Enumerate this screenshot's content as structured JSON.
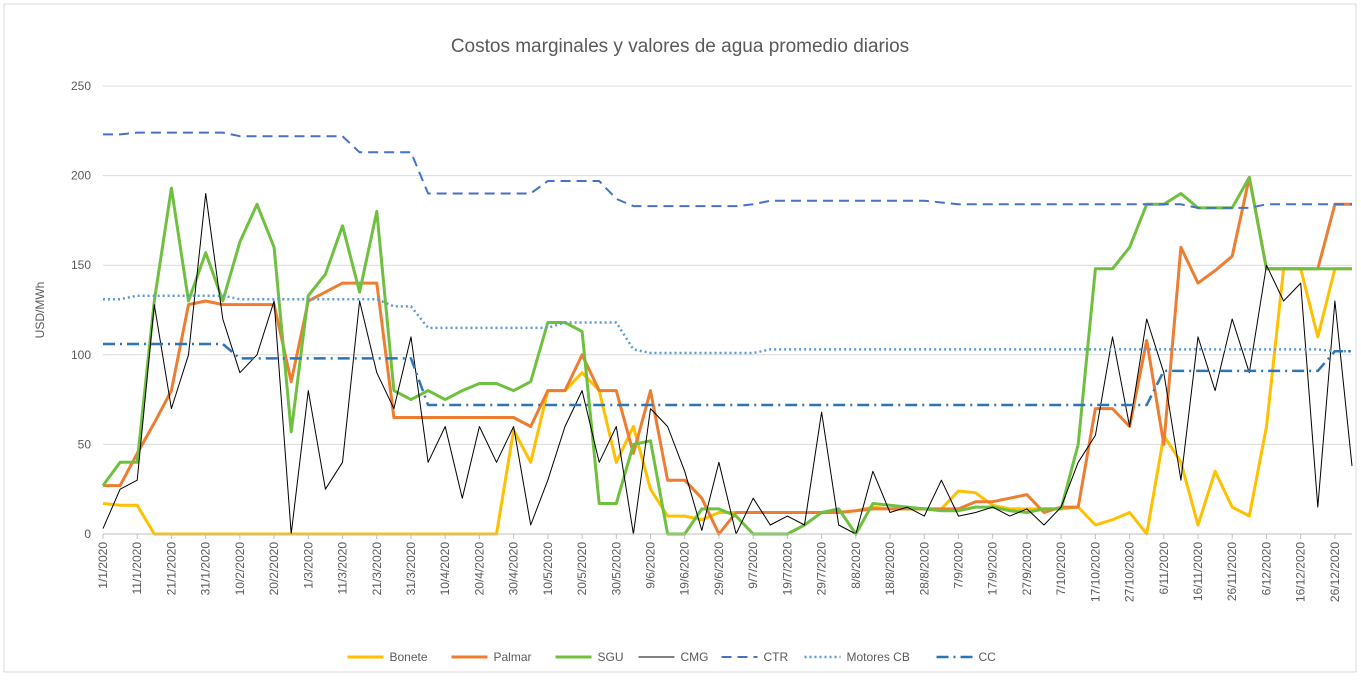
{
  "chart_data": {
    "type": "line",
    "title": "Costos marginales y valores de agua promedio diarios",
    "ylabel": "USD/MWh",
    "ylim": [
      0,
      250
    ],
    "yticks": [
      0,
      50,
      100,
      150,
      200,
      250
    ],
    "grid": true,
    "legend": "bottom",
    "categories": [
      "1/1/2020",
      null,
      "11/1/2020",
      null,
      "21/1/2020",
      null,
      "31/1/2020",
      null,
      "10/2/2020",
      null,
      "20/2/2020",
      null,
      "1/3/2020",
      null,
      "11/3/2020",
      null,
      "21/3/2020",
      null,
      "31/3/2020",
      null,
      "10/4/2020",
      null,
      "20/4/2020",
      null,
      "30/4/2020",
      null,
      "10/5/2020",
      null,
      "20/5/2020",
      null,
      "30/5/2020",
      null,
      "9/6/2020",
      null,
      "19/6/2020",
      null,
      "29/6/2020",
      null,
      "9/7/2020",
      null,
      "19/7/2020",
      null,
      "29/7/2020",
      null,
      "8/8/2020",
      null,
      "18/8/2020",
      null,
      "28/8/2020",
      null,
      "7/9/2020",
      null,
      "17/9/2020",
      null,
      "27/9/2020",
      null,
      "7/10/2020",
      null,
      "17/10/2020",
      null,
      "27/10/2020",
      null,
      "6/11/2020",
      null,
      "16/11/2020",
      null,
      "26/11/2020",
      null,
      "6/12/2020",
      null,
      "16/12/2020",
      null,
      "26/12/2020",
      null
    ],
    "series": [
      {
        "name": "Bonete",
        "color": "#ffc000",
        "style": "solid",
        "linewidth": 3,
        "values": [
          17,
          16,
          16,
          0,
          0,
          0,
          0,
          0,
          0,
          0,
          0,
          0,
          0,
          0,
          0,
          0,
          0,
          0,
          0,
          0,
          0,
          0,
          0,
          0,
          58,
          40,
          80,
          80,
          90,
          80,
          40,
          60,
          25,
          10,
          10,
          8,
          12,
          12,
          12,
          12,
          12,
          12,
          12,
          12,
          13,
          15,
          14,
          14,
          14,
          14,
          24,
          23,
          16,
          14,
          14,
          14,
          14,
          15,
          5,
          8,
          12,
          0,
          55,
          40,
          5,
          35,
          15,
          10,
          60,
          148,
          148,
          110,
          148,
          148
        ]
      },
      {
        "name": "Palmar",
        "color": "#ed7d31",
        "style": "solid",
        "linewidth": 3,
        "values": [
          27,
          27,
          45,
          62,
          80,
          128,
          130,
          128,
          128,
          128,
          128,
          85,
          130,
          135,
          140,
          140,
          140,
          65,
          65,
          65,
          65,
          65,
          65,
          65,
          65,
          60,
          80,
          80,
          100,
          80,
          80,
          45,
          80,
          30,
          30,
          20,
          0,
          12,
          12,
          12,
          12,
          12,
          12,
          12,
          13,
          14,
          14,
          14,
          14,
          14,
          14,
          18,
          18,
          20,
          22,
          12,
          15,
          15,
          70,
          70,
          60,
          108,
          50,
          160,
          140,
          147,
          155,
          199,
          148,
          148,
          148,
          148,
          184,
          184
        ]
      },
      {
        "name": "SGU",
        "color": "#70c040",
        "style": "solid",
        "linewidth": 3,
        "values": [
          27,
          40,
          40,
          130,
          193,
          130,
          157,
          130,
          163,
          184,
          160,
          57,
          133,
          145,
          172,
          135,
          180,
          80,
          75,
          80,
          75,
          80,
          84,
          84,
          80,
          85,
          118,
          118,
          113,
          17,
          17,
          50,
          52,
          0,
          0,
          14,
          14,
          10,
          0,
          0,
          0,
          5,
          12,
          14,
          0,
          17,
          16,
          15,
          14,
          13,
          13,
          15,
          15,
          13,
          12,
          14,
          14,
          50,
          148,
          148,
          160,
          184,
          184,
          190,
          182,
          182,
          182,
          199,
          148,
          148,
          148,
          148,
          148,
          148
        ]
      },
      {
        "name": "CMG",
        "color": "#000000",
        "style": "solid",
        "linewidth": 1,
        "values": [
          3,
          25,
          30,
          128,
          70,
          100,
          190,
          120,
          90,
          100,
          130,
          0,
          80,
          25,
          40,
          130,
          90,
          70,
          110,
          40,
          60,
          20,
          60,
          40,
          60,
          5,
          30,
          60,
          80,
          40,
          60,
          0,
          70,
          60,
          35,
          2,
          40,
          0,
          20,
          5,
          10,
          5,
          68,
          5,
          0,
          35,
          12,
          15,
          10,
          30,
          10,
          12,
          15,
          10,
          14,
          5,
          15,
          40,
          55,
          110,
          60,
          120,
          90,
          30,
          110,
          80,
          120,
          90,
          150,
          130,
          140,
          15,
          130,
          38
        ]
      },
      {
        "name": "CTR",
        "color": "#4472c4",
        "style": "dashed",
        "linewidth": 2,
        "values": [
          223,
          223,
          224,
          224,
          224,
          224,
          224,
          224,
          222,
          222,
          222,
          222,
          222,
          222,
          222,
          213,
          213,
          213,
          213,
          190,
          190,
          190,
          190,
          190,
          190,
          190,
          197,
          197,
          197,
          197,
          187,
          183,
          183,
          183,
          183,
          183,
          183,
          183,
          184,
          186,
          186,
          186,
          186,
          186,
          186,
          186,
          186,
          186,
          186,
          185,
          184,
          184,
          184,
          184,
          184,
          184,
          184,
          184,
          184,
          184,
          184,
          184,
          184,
          184,
          182,
          182,
          182,
          182,
          184,
          184,
          184,
          184,
          184,
          184
        ]
      },
      {
        "name": "Motores CB",
        "color": "#5b9bd5",
        "style": "dotted",
        "linewidth": 2.5,
        "values": [
          131,
          131,
          133,
          133,
          133,
          133,
          133,
          133,
          131,
          131,
          131,
          131,
          131,
          131,
          131,
          131,
          131,
          127,
          127,
          115,
          115,
          115,
          115,
          115,
          115,
          115,
          115,
          118,
          118,
          118,
          118,
          103,
          101,
          101,
          101,
          101,
          101,
          101,
          101,
          103,
          103,
          103,
          103,
          103,
          103,
          103,
          103,
          103,
          103,
          103,
          103,
          103,
          103,
          103,
          103,
          103,
          103,
          103,
          103,
          103,
          103,
          103,
          103,
          103,
          103,
          103,
          103,
          103,
          103,
          103,
          103,
          103,
          102,
          102
        ]
      },
      {
        "name": "CC",
        "color": "#2e75b6",
        "style": "dashdot",
        "linewidth": 2.5,
        "values": [
          106,
          106,
          106,
          106,
          106,
          106,
          106,
          106,
          98,
          98,
          98,
          98,
          98,
          98,
          98,
          98,
          98,
          98,
          98,
          72,
          72,
          72,
          72,
          72,
          72,
          72,
          72,
          72,
          72,
          72,
          72,
          72,
          72,
          72,
          72,
          72,
          72,
          72,
          72,
          72,
          72,
          72,
          72,
          72,
          72,
          72,
          72,
          72,
          72,
          72,
          72,
          72,
          72,
          72,
          72,
          72,
          72,
          72,
          72,
          72,
          72,
          72,
          91,
          91,
          91,
          91,
          91,
          91,
          91,
          91,
          91,
          91,
          102,
          102
        ]
      }
    ]
  }
}
